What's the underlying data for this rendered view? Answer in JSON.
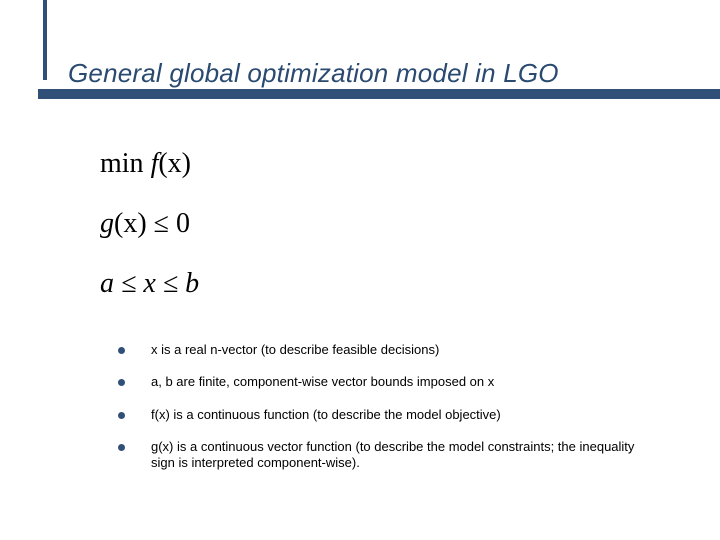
{
  "theme": {
    "accent_color": "#305078",
    "background_color": "#ffffff",
    "title_color": "#2a4a70",
    "text_color": "#000000",
    "title_fontsize": 26,
    "math_fontsize": 28,
    "bullet_fontsize": 13,
    "title_font": "Verdana",
    "math_font": "Times New Roman"
  },
  "title": "General global optimization model in LGO",
  "math": {
    "line1_prefix": "min ",
    "line1_fn": "f",
    "line1_arg": "(x)",
    "line2_fn": "g",
    "line2_arg": "(x)",
    "line2_rel": " ≤ 0",
    "line3": "a ≤ x ≤ b"
  },
  "bullets": [
    {
      "text": "x is a real n-vector (to describe feasible decisions)"
    },
    {
      "text": "a, b are finite, component-wise vector bounds imposed on x"
    },
    {
      "text": "f(x) is a continuous function (to describe the model objective)"
    },
    {
      "text": "g(x) is a continuous vector function (to describe the model constraints; the inequality sign is interpreted component-wise)."
    }
  ]
}
